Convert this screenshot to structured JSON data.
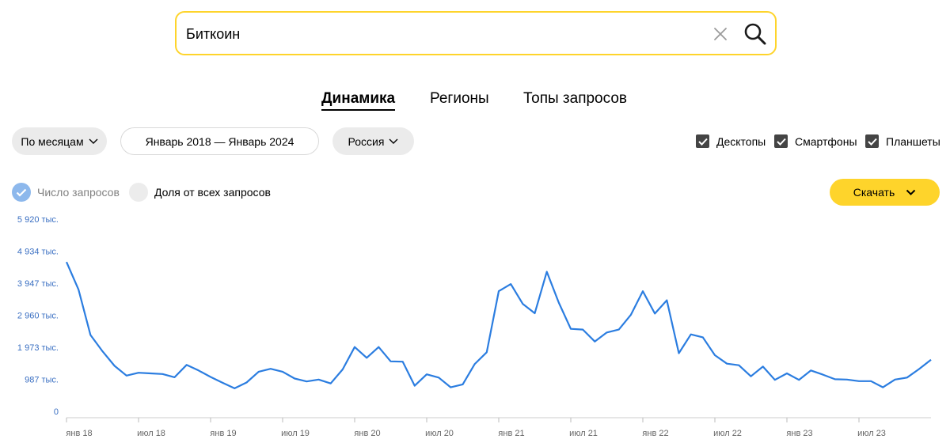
{
  "search": {
    "value": "Биткоин",
    "clear_icon": "close-icon",
    "search_icon": "search-icon",
    "accent": "#fed42b"
  },
  "tabs": [
    {
      "label": "Динамика",
      "active": true
    },
    {
      "label": "Регионы",
      "active": false
    },
    {
      "label": "Топы запросов",
      "active": false
    }
  ],
  "filters": {
    "grouping": "По месяцам",
    "period": "Январь 2018 — Январь 2024",
    "region": "Россия"
  },
  "devices": [
    {
      "label": "Десктопы",
      "checked": true
    },
    {
      "label": "Смартфоны",
      "checked": true
    },
    {
      "label": "Планшеты",
      "checked": true
    }
  ],
  "metrics": {
    "count_label": "Число запросов",
    "count_selected": true,
    "share_label": "Доля от всех запросов",
    "share_selected": false
  },
  "download_label": "Скачать",
  "chart_data": {
    "type": "line",
    "color": "#2b7de0",
    "ylim": [
      0,
      5920
    ],
    "y_ticks": [
      {
        "value": 5920,
        "label": "5 920 тыс."
      },
      {
        "value": 4934,
        "label": "4 934 тыс."
      },
      {
        "value": 3947,
        "label": "3 947 тыс."
      },
      {
        "value": 2960,
        "label": "2 960 тыс."
      },
      {
        "value": 1973,
        "label": "1 973 тыс."
      },
      {
        "value": 987,
        "label": "987 тыс."
      },
      {
        "value": 0,
        "label": "0"
      }
    ],
    "x_labels": [
      {
        "index": 0,
        "label": "янв 18"
      },
      {
        "index": 6,
        "label": "июл 18"
      },
      {
        "index": 12,
        "label": "янв 19"
      },
      {
        "index": 18,
        "label": "июл 19"
      },
      {
        "index": 24,
        "label": "янв 20"
      },
      {
        "index": 30,
        "label": "июл 20"
      },
      {
        "index": 36,
        "label": "янв 21"
      },
      {
        "index": 42,
        "label": "июл 21"
      },
      {
        "index": 48,
        "label": "янв 22"
      },
      {
        "index": 54,
        "label": "июл 22"
      },
      {
        "index": 60,
        "label": "янв 23"
      },
      {
        "index": 66,
        "label": "июл 23"
      }
    ],
    "series": [
      {
        "values": [
          4600,
          3750,
          2350,
          1850,
          1400,
          1100,
          1190,
          1170,
          1150,
          1050,
          1430,
          1260,
          1060,
          880,
          710,
          890,
          1220,
          1310,
          1220,
          1010,
          920,
          980,
          860,
          1290,
          1980,
          1650,
          1980,
          1540,
          1530,
          790,
          1140,
          1040,
          740,
          830,
          1460,
          1820,
          3700,
          3920,
          3310,
          3020,
          4300,
          3350,
          2540,
          2520,
          2150,
          2430,
          2520,
          2970,
          3700,
          3010,
          3420,
          1790,
          2370,
          2280,
          1730,
          1470,
          1420,
          1080,
          1380,
          970,
          1170,
          970,
          1260,
          1130,
          990,
          980,
          930,
          930,
          740,
          980,
          1040,
          1300,
          1590
        ]
      }
    ]
  }
}
